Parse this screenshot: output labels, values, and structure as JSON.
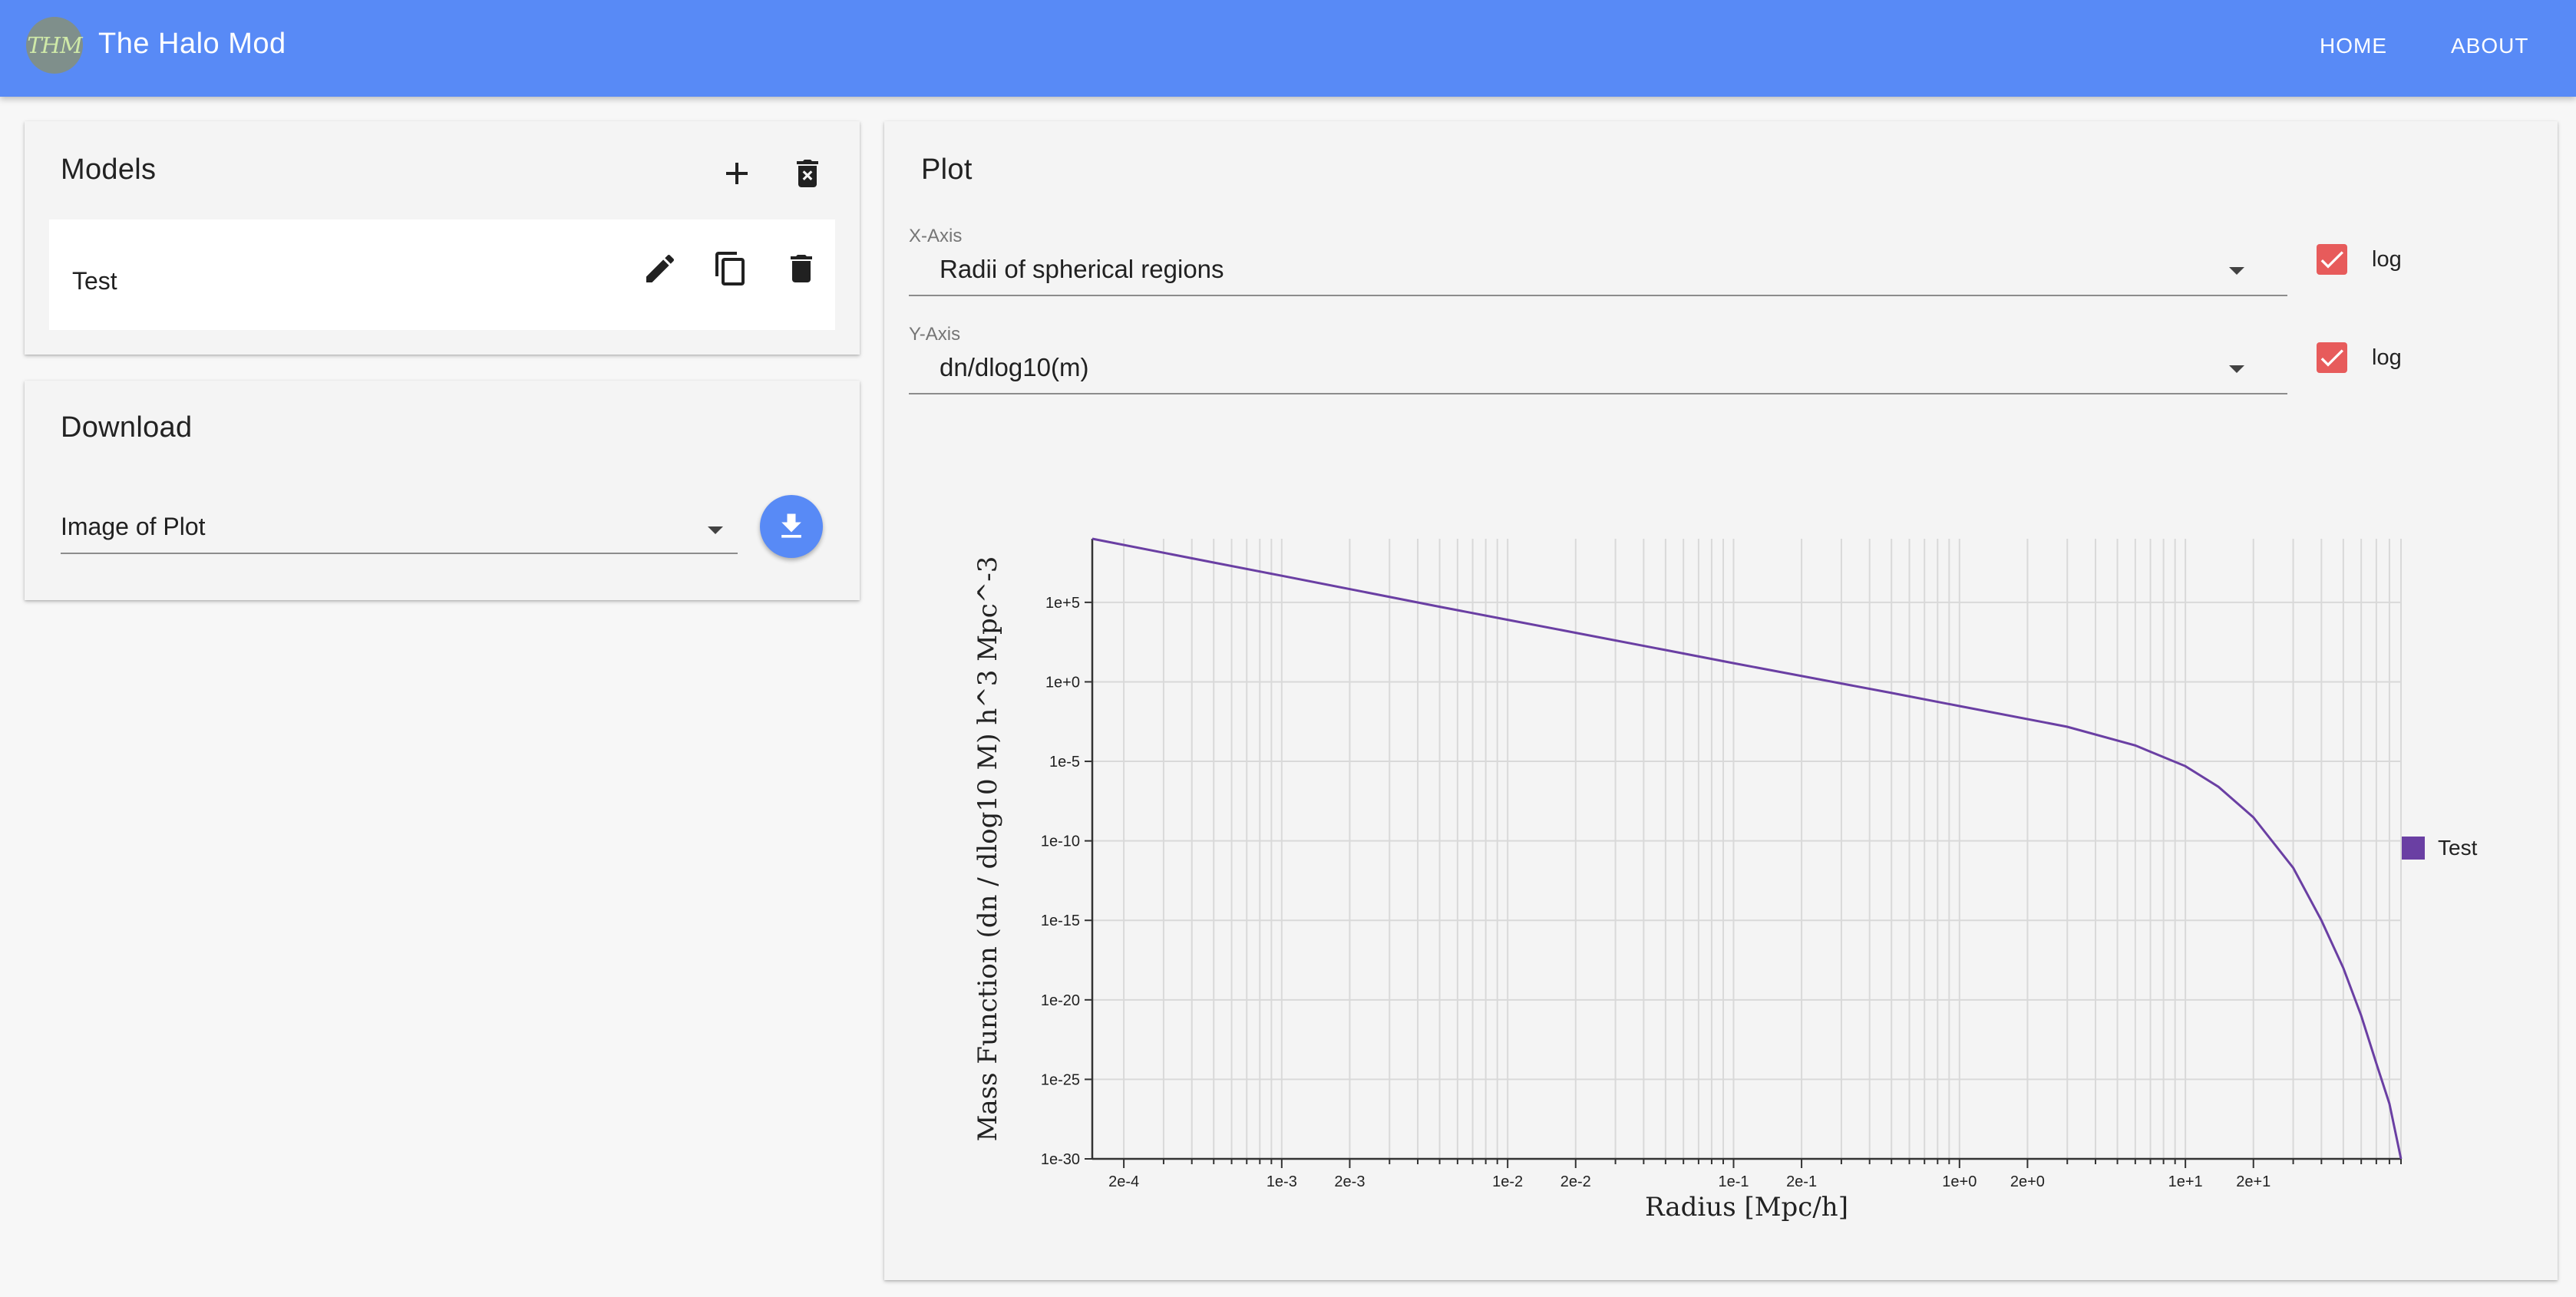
{
  "app": {
    "logo_text": "THM",
    "title": "The Halo Mod",
    "nav": [
      {
        "label": "HOME"
      },
      {
        "label": "ABOUT"
      }
    ]
  },
  "models_panel": {
    "title": "Models",
    "add_icon": "plus-icon",
    "clear_icon": "delete-all-icon",
    "items": [
      {
        "name": "Test",
        "actions": [
          "edit-icon",
          "copy-icon",
          "delete-icon"
        ]
      }
    ]
  },
  "download_panel": {
    "title": "Download",
    "selected": "Image of Plot",
    "button_icon": "download-icon"
  },
  "plot_panel": {
    "title": "Plot",
    "x_axis": {
      "label": "X-Axis",
      "value": "Radii of spherical regions",
      "log_label": "log",
      "log": true
    },
    "y_axis": {
      "label": "Y-Axis",
      "value": "dn/dlog10(m)",
      "log_label": "log",
      "log": true
    }
  },
  "colors": {
    "appbar": "#588af6",
    "series": "#6a3fa3",
    "checkbox": "#e75b5b"
  },
  "chart_data": {
    "type": "line",
    "xscale": "log",
    "yscale": "log",
    "xlim": [
      0.000145,
      90
    ],
    "ylim": [
      1e-30,
      1000000000.0
    ],
    "xlabel": "Radius [Mpc/h]",
    "ylabel": "Mass Function (dn / dlog10 M) h^3 Mpc^-3",
    "x_ticks": [
      0.0002,
      0.001,
      0.002,
      0.01,
      0.02,
      0.1,
      0.2,
      1,
      2,
      10,
      20
    ],
    "x_tick_labels": [
      "2e-4",
      "1e-3",
      "2e-3",
      "1e-2",
      "2e-2",
      "1e-1",
      "2e-1",
      "1e+0",
      "2e+0",
      "1e+1",
      "2e+1"
    ],
    "y_ticks": [
      100000.0,
      1,
      1e-05,
      1e-10,
      1e-15,
      1e-20,
      1e-25,
      1e-30
    ],
    "y_tick_labels": [
      "1e+5",
      "1e+0",
      "1e-5",
      "1e-10",
      "1e-15",
      "1e-20",
      "1e-25",
      "1e-30"
    ],
    "grid": true,
    "legend_position": "right",
    "series": [
      {
        "name": "Test",
        "x": [
          0.000145,
          0.0005,
          0.001,
          0.005,
          0.01,
          0.05,
          0.1,
          0.5,
          1,
          3,
          6,
          10,
          14,
          20,
          30,
          40,
          50,
          60,
          70,
          80,
          90
        ],
        "y": [
          1000000000.0,
          32000000.0,
          4700000.0,
          53000.0,
          8000.0,
          100.0,
          15.0,
          0.2,
          0.03,
          0.0015,
          0.0001,
          5e-06,
          2.5e-07,
          3e-09,
          2e-12,
          1e-15,
          1e-18,
          1e-21,
          1e-24,
          3e-27,
          1e-30
        ]
      }
    ]
  }
}
